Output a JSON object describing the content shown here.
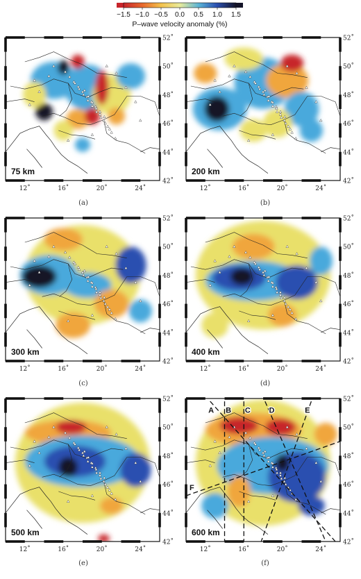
{
  "colorbar": {
    "ticks": [
      "−1.5",
      "−1.0",
      "−0.5",
      "0.0",
      "0.5",
      "1.0",
      "1.5"
    ],
    "label": "P–wave velocity anomaly (%)"
  },
  "axes": {
    "lat_ticks": [
      "52˚",
      "50˚",
      "48˚",
      "46˚",
      "44˚",
      "42˚"
    ],
    "lon_ticks": [
      "12˚",
      "16˚",
      "20˚",
      "24˚"
    ]
  },
  "panels": [
    {
      "caption": "(a)",
      "depth_label": "75 km"
    },
    {
      "caption": "(b)",
      "depth_label": "200 km"
    },
    {
      "caption": "(c)",
      "depth_label": "300 km"
    },
    {
      "caption": "(d)",
      "depth_label": "400 km"
    },
    {
      "caption": "(e)",
      "depth_label": "500 km"
    },
    {
      "caption": "(f)",
      "depth_label": "600 km"
    }
  ],
  "profile_labels": [
    "A",
    "B",
    "C",
    "D",
    "E",
    "F"
  ],
  "colors": {
    "fast_dark": "#141428",
    "fast": "#2b4fb0",
    "mid_blue": "#49a9dc",
    "neutral": "#e9e06a",
    "slow": "#f0a63c",
    "slow_dark": "#c7252b"
  }
}
